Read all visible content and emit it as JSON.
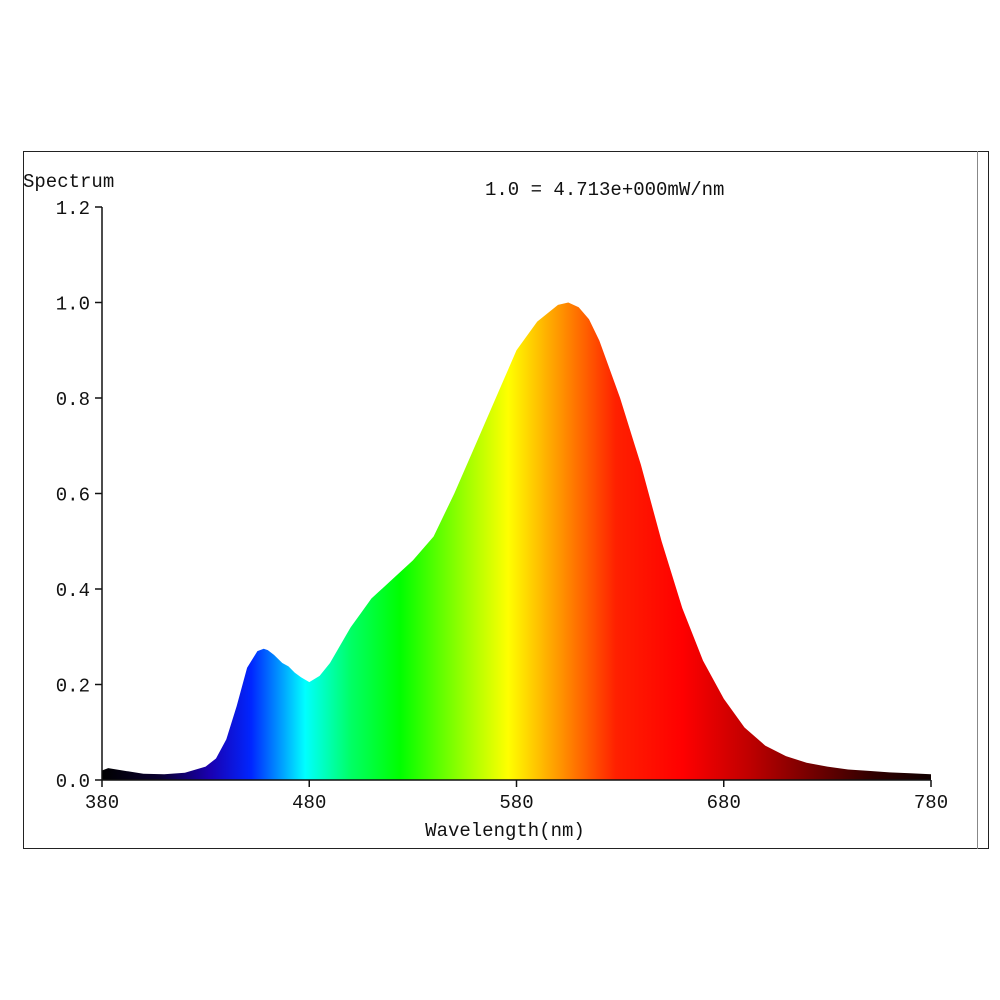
{
  "chart_data": {
    "type": "area",
    "title": "1.0 = 4.713e+000mW/nm",
    "ylabel": "Spectrum",
    "xlabel": "Wavelength(nm)",
    "xlim": [
      380,
      780
    ],
    "ylim": [
      0,
      1.2
    ],
    "x_ticks": [
      "380",
      "480",
      "580",
      "680",
      "780"
    ],
    "y_ticks": [
      "0.0",
      "0.2",
      "0.4",
      "0.6",
      "0.8",
      "1.0",
      "1.2"
    ],
    "grid": false,
    "series": [
      {
        "x": [
          380,
          383,
          390,
          400,
          410,
          420,
          430,
          435,
          440,
          445,
          450,
          455,
          458,
          460,
          463,
          467,
          470,
          473,
          476,
          480,
          485,
          490,
          500,
          505,
          510,
          520,
          530,
          540,
          550,
          560,
          570,
          580,
          590,
          600,
          605,
          610,
          615,
          620,
          630,
          640,
          650,
          660,
          670,
          680,
          690,
          700,
          710,
          720,
          730,
          740,
          750,
          760,
          770,
          780
        ],
        "y": [
          0.02,
          0.025,
          0.02,
          0.013,
          0.012,
          0.015,
          0.028,
          0.045,
          0.085,
          0.155,
          0.235,
          0.27,
          0.275,
          0.272,
          0.262,
          0.245,
          0.238,
          0.225,
          0.215,
          0.205,
          0.218,
          0.245,
          0.32,
          0.35,
          0.38,
          0.42,
          0.46,
          0.51,
          0.6,
          0.7,
          0.8,
          0.9,
          0.96,
          0.995,
          1.0,
          0.99,
          0.965,
          0.92,
          0.8,
          0.66,
          0.5,
          0.36,
          0.25,
          0.17,
          0.11,
          0.072,
          0.05,
          0.036,
          0.028,
          0.022,
          0.019,
          0.016,
          0.014,
          0.012
        ]
      }
    ]
  }
}
